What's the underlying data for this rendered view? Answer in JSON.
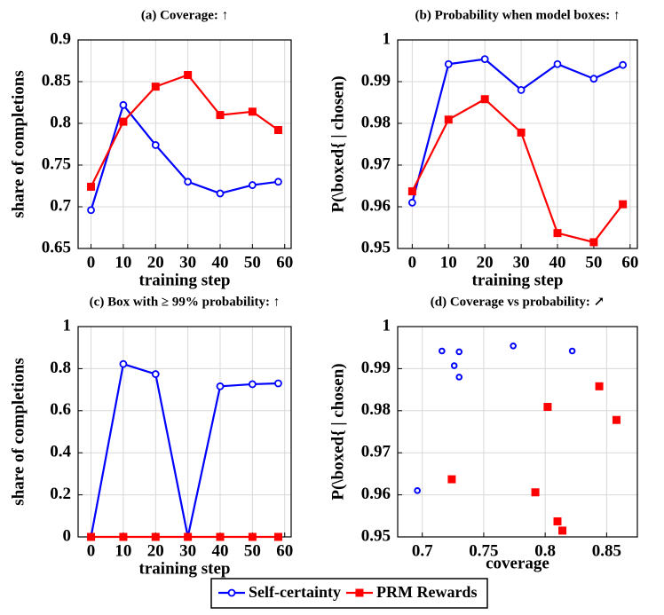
{
  "chart_data": [
    {
      "type": "line",
      "title": "(a) Coverage: ↑",
      "xlabel": "training step",
      "ylabel": "share of completions",
      "x": [
        0,
        10,
        20,
        30,
        40,
        50,
        58
      ],
      "xlim": [
        -4,
        62
      ],
      "xticks": [
        0,
        10,
        20,
        30,
        40,
        50,
        60
      ],
      "ylim": [
        0.65,
        0.9
      ],
      "yticks": [
        0.65,
        0.7,
        0.75,
        0.8,
        0.85,
        0.9
      ],
      "grid": true,
      "series": [
        {
          "name": "Self-certainty",
          "color": "#0000ff",
          "marker": "circle",
          "values": [
            0.696,
            0.822,
            0.774,
            0.73,
            0.716,
            0.726,
            0.73
          ]
        },
        {
          "name": "PRM Rewards",
          "color": "#ff0000",
          "marker": "square",
          "values": [
            0.724,
            0.802,
            0.844,
            0.858,
            0.81,
            0.814,
            0.792
          ]
        }
      ]
    },
    {
      "type": "line",
      "title": "(b) Probability when model boxes: ↑",
      "xlabel": "training step",
      "ylabel": "P(\\boxed{ | chosen)",
      "x": [
        0,
        10,
        20,
        30,
        40,
        50,
        58
      ],
      "xlim": [
        -4,
        62
      ],
      "xticks": [
        0,
        10,
        20,
        30,
        40,
        50,
        60
      ],
      "ylim": [
        0.95,
        1
      ],
      "yticks": [
        0.95,
        0.96,
        0.97,
        0.98,
        0.99,
        1
      ],
      "grid": true,
      "series": [
        {
          "name": "Self-certainty",
          "color": "#0000ff",
          "marker": "circle",
          "values": [
            0.961,
            0.9942,
            0.9954,
            0.988,
            0.9942,
            0.9907,
            0.994
          ]
        },
        {
          "name": "PRM Rewards",
          "color": "#ff0000",
          "marker": "square",
          "values": [
            0.9637,
            0.9809,
            0.9858,
            0.9778,
            0.9537,
            0.9515,
            0.9606
          ]
        }
      ]
    },
    {
      "type": "line",
      "title": "(c) Box with ≥ 99% probability: ↑",
      "xlabel": "training step",
      "ylabel": "share of completions",
      "x": [
        0,
        10,
        20,
        30,
        40,
        50,
        58
      ],
      "xlim": [
        -4,
        62
      ],
      "xticks": [
        0,
        10,
        20,
        30,
        40,
        50,
        60
      ],
      "ylim": [
        0,
        1
      ],
      "yticks": [
        0,
        0.2,
        0.4,
        0.6,
        0.8,
        1
      ],
      "grid": true,
      "series": [
        {
          "name": "Self-certainty",
          "color": "#0000ff",
          "marker": "circle",
          "values": [
            0,
            0.822,
            0.774,
            0,
            0.716,
            0.726,
            0.73
          ]
        },
        {
          "name": "PRM Rewards",
          "color": "#ff0000",
          "marker": "square",
          "values": [
            0,
            0,
            0,
            0,
            0,
            0,
            0
          ]
        }
      ]
    },
    {
      "type": "scatter",
      "title": "(d) Coverage vs probability: ↗",
      "xlabel": "coverage",
      "ylabel": "P(\\boxed{ | chosen)",
      "xlim": [
        0.68,
        0.875
      ],
      "xticks": [
        0.7,
        0.75,
        0.8,
        0.85
      ],
      "ylim": [
        0.95,
        1
      ],
      "yticks": [
        0.95,
        0.96,
        0.97,
        0.98,
        0.99,
        1
      ],
      "grid": true,
      "series": [
        {
          "name": "Self-certainty",
          "color": "#0000ff",
          "marker": "circle",
          "x": [
            0.696,
            0.822,
            0.774,
            0.73,
            0.716,
            0.726,
            0.73
          ],
          "values": [
            0.961,
            0.9942,
            0.9954,
            0.988,
            0.9942,
            0.9907,
            0.994
          ]
        },
        {
          "name": "PRM Rewards",
          "color": "#ff0000",
          "marker": "square",
          "x": [
            0.724,
            0.802,
            0.844,
            0.858,
            0.81,
            0.814,
            0.792
          ],
          "values": [
            0.9637,
            0.9809,
            0.9858,
            0.9778,
            0.9537,
            0.9515,
            0.9606
          ]
        }
      ]
    }
  ]
}
